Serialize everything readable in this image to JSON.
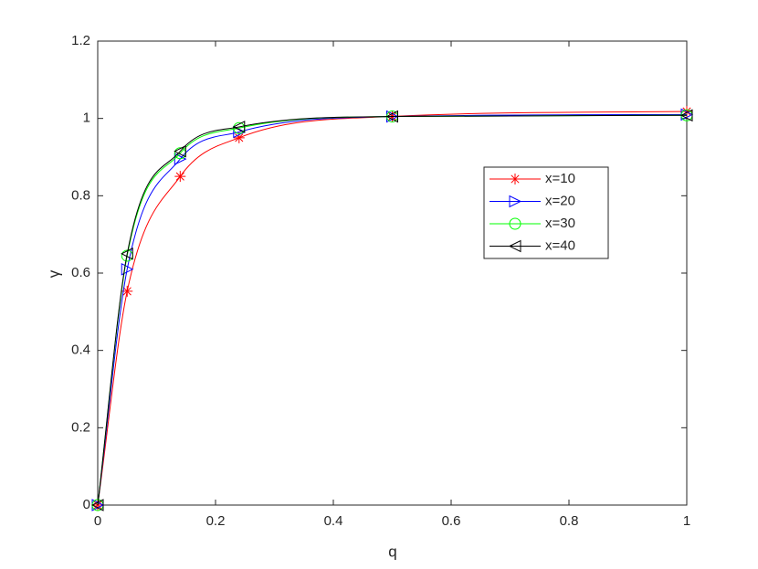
{
  "chart_data": {
    "type": "line",
    "xlabel": "q",
    "ylabel": "γ",
    "x": [
      0,
      0.05,
      0.14,
      0.24,
      0.5,
      1
    ],
    "series": [
      {
        "name": "x=10",
        "color": "#ff0000",
        "marker": "asterisk",
        "values": [
          0,
          0.553,
          0.85,
          0.95,
          1.005,
          1.018
        ]
      },
      {
        "name": "x=20",
        "color": "#0000ff",
        "marker": "triangle-right",
        "values": [
          0,
          0.61,
          0.895,
          0.965,
          1.005,
          1.01
        ]
      },
      {
        "name": "x=30",
        "color": "#00ff00",
        "marker": "circle",
        "values": [
          0,
          0.645,
          0.91,
          0.975,
          1.005,
          1.008
        ]
      },
      {
        "name": "x=40",
        "color": "#000000",
        "marker": "triangle-left",
        "values": [
          0,
          0.65,
          0.915,
          0.978,
          1.005,
          1.008
        ]
      }
    ],
    "xlim": [
      0,
      1
    ],
    "xticks": [
      0,
      0.2,
      0.4,
      0.6,
      0.8,
      1
    ],
    "ylim": [
      0,
      1.2
    ],
    "yticks": [
      0,
      0.2,
      0.4,
      0.6,
      0.8,
      1,
      1.2
    ],
    "grid": false,
    "legend": "east"
  }
}
